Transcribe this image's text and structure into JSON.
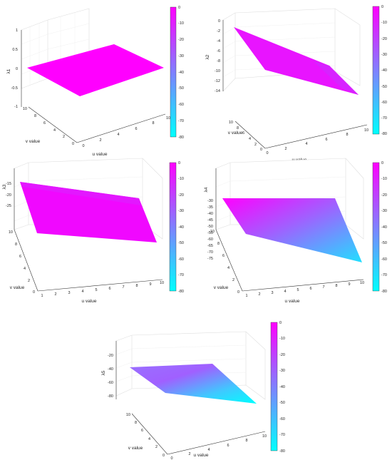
{
  "colors": {
    "colormap_top": "#ff00ff",
    "colormap_bottom": "#00ffff"
  },
  "colorbar_ticks": [
    "0",
    "-10",
    "-20",
    "-30",
    "-40",
    "-50",
    "-60",
    "-70",
    "-80"
  ],
  "chart_data": [
    {
      "type": "surface",
      "xlabel": "u value",
      "ylabel": "v value",
      "zlabel": "λ1",
      "xticks": [
        "0",
        "2",
        "4",
        "6",
        "8",
        "10"
      ],
      "yticks": [
        "0",
        "2",
        "4",
        "6",
        "8",
        "10"
      ],
      "zticks": [
        "1",
        "0.5",
        "0",
        "-0.5",
        "-1"
      ],
      "colorbar_ticks": [
        "0",
        "-10",
        "-20",
        "-30",
        "-40",
        "-50",
        "-60",
        "-70",
        "-80"
      ],
      "clim": [
        -80,
        0
      ],
      "corner_values": {
        "u0_v0": 0,
        "u10_v0": 0,
        "u0_v10": 0,
        "u10_v10": 0
      }
    },
    {
      "type": "surface",
      "xlabel": "u value",
      "ylabel": "v value",
      "zlabel": "λ2",
      "xticks": [
        "0",
        "2",
        "4",
        "6",
        "8",
        "10"
      ],
      "yticks": [
        "0",
        "2",
        "4",
        "6",
        "8",
        "10"
      ],
      "zticks": [
        "0",
        "-2",
        "-4",
        "-6",
        "-8",
        "-10",
        "-12",
        "-14"
      ],
      "colorbar_ticks": [
        "0",
        "-10",
        "-20",
        "-30",
        "-40",
        "-50",
        "-60",
        "-70",
        "-80"
      ],
      "clim": [
        -80,
        0
      ],
      "corner_values": {
        "u0_v0": -7,
        "u10_v0": -14,
        "u0_v10": 0,
        "u10_v10": -7
      }
    },
    {
      "type": "surface",
      "xlabel": "u value",
      "ylabel": "v value",
      "zlabel": "λ3",
      "xticks": [
        "1",
        "2",
        "3",
        "4",
        "5",
        "6",
        "7",
        "8",
        "9",
        "10"
      ],
      "yticks": [
        "0",
        "2",
        "4",
        "6",
        "8",
        "10"
      ],
      "zticks": [
        "-15",
        "-20",
        "-25"
      ],
      "colorbar_ticks": [
        "0",
        "-10",
        "-20",
        "-30",
        "-40",
        "-50",
        "-60",
        "-70",
        "-80"
      ],
      "clim": [
        -80,
        0
      ],
      "corner_values": {
        "u1_v0": -22,
        "u10_v0": -28,
        "u1_v10": -14,
        "u10_v10": -20
      }
    },
    {
      "type": "surface",
      "xlabel": "u value",
      "ylabel": "v value",
      "zlabel": "λ4",
      "xticks": [
        "1",
        "2",
        "3",
        "4",
        "5",
        "6",
        "7",
        "8",
        "9",
        "10"
      ],
      "yticks": [
        "0",
        "2",
        "4",
        "6",
        "8",
        "10"
      ],
      "zticks": [
        "-30",
        "-35",
        "-40",
        "-45",
        "-50",
        "-55",
        "-60",
        "-65",
        "-70",
        "-75"
      ],
      "colorbar_ticks": [
        "0",
        "-10",
        "-20",
        "-30",
        "-40",
        "-50",
        "-60",
        "-70",
        "-80"
      ],
      "clim": [
        -80,
        0
      ],
      "corner_values": {
        "u1_v0": -45,
        "u10_v0": -75,
        "u1_v10": -30,
        "u10_v10": -60
      }
    },
    {
      "type": "surface",
      "xlabel": "u value",
      "ylabel": "v value",
      "zlabel": "λ5",
      "xticks": [
        "0",
        "2",
        "4",
        "6",
        "8",
        "10"
      ],
      "yticks": [
        "0",
        "2",
        "4",
        "6",
        "8",
        "10"
      ],
      "zticks": [
        "-20",
        "-40",
        "-60",
        "-80"
      ],
      "colorbar_ticks": [
        "0",
        "-10",
        "-20",
        "-30",
        "-40",
        "-50",
        "-60",
        "-70",
        "-80"
      ],
      "clim": [
        -80,
        0
      ],
      "corner_values": {
        "u0_v0": -45,
        "u10_v0": -80,
        "u0_v10": -30,
        "u10_v10": -65
      }
    }
  ]
}
